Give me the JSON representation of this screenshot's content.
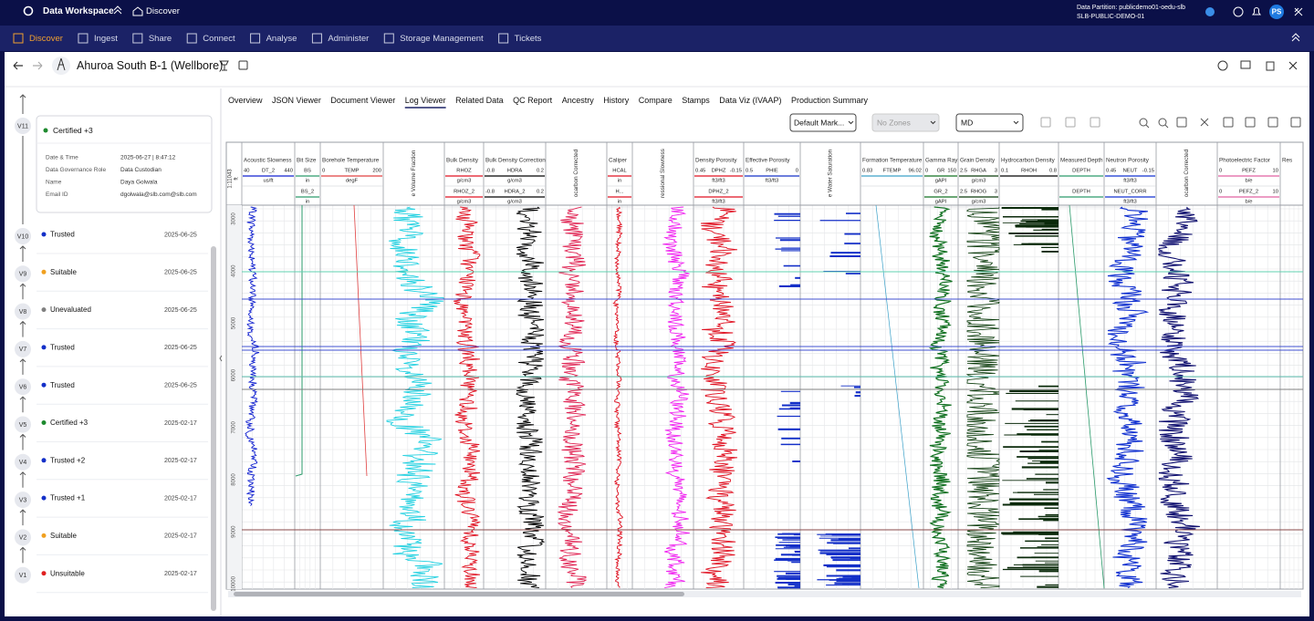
{
  "top_bar": {
    "app": "Data Workspace",
    "home": "Discover",
    "partition": "Data Partition: publicdemo01-oedu-slb",
    "partition_id": "SLB-PUBLIC-DEMO-01",
    "user": "PS"
  },
  "nav": [
    "Discover",
    "Ingest",
    "Share",
    "Connect",
    "Analyse",
    "Administer",
    "Storage Management",
    "Tickets"
  ],
  "page": {
    "title": "Ahuroa South B-1 (Wellbore)"
  },
  "versions": [
    {
      "id": "V11",
      "status": "Certified +3",
      "color": "#1e8a2e",
      "details": [
        {
          "label": "Date & Time",
          "value": "2025-06-27 | 8:47:12"
        },
        {
          "label": "Data Governance Role",
          "value": "Data Custodian"
        },
        {
          "label": "Name",
          "value": "Daya Golwala"
        },
        {
          "label": "Email ID",
          "value": "dgolwala@slb.com@slb.com"
        }
      ]
    },
    {
      "id": "V10",
      "status": "Trusted",
      "date": "2025-06-25",
      "color": "#1430c8"
    },
    {
      "id": "V9",
      "status": "Suitable",
      "date": "2025-06-25",
      "color": "#f0a020"
    },
    {
      "id": "V8",
      "status": "Unevaluated",
      "date": "2025-06-25",
      "color": "#808080"
    },
    {
      "id": "V7",
      "status": "Trusted",
      "date": "2025-06-25",
      "color": "#1430c8"
    },
    {
      "id": "V6",
      "status": "Trusted",
      "date": "2025-06-25",
      "color": "#1430c8"
    },
    {
      "id": "V5",
      "status": "Certified +3",
      "date": "2025-02-17",
      "color": "#1e8a2e"
    },
    {
      "id": "V4",
      "status": "Trusted +2",
      "date": "2025-02-17",
      "color": "#1430c8"
    },
    {
      "id": "V3",
      "status": "Trusted +1",
      "date": "2025-02-17",
      "color": "#1430c8"
    },
    {
      "id": "V2",
      "status": "Suitable",
      "date": "2025-02-17",
      "color": "#f0a020"
    },
    {
      "id": "V1",
      "status": "Unsuitable",
      "date": "2025-02-17",
      "color": "#e02020"
    }
  ],
  "tabs": [
    "Overview",
    "JSON Viewer",
    "Document Viewer",
    "Log Viewer",
    "Related Data",
    "QC Report",
    "Ancestry",
    "History",
    "Compare",
    "Stamps",
    "Data Viz (IVAAP)",
    "Production Summary"
  ],
  "active_tab": "Log Viewer",
  "controls": {
    "marker": "Default Mark...",
    "zones": "No Zones",
    "depth_ref": "MD"
  },
  "log_viewer": {
    "scale": "1:11043",
    "depth_unit": "ft",
    "depth_labels": [
      "3000",
      "4000",
      "5000",
      "6000",
      "7000",
      "8000",
      "9000",
      "10000"
    ],
    "tracks": [
      {
        "title": "Acoustic Slowness",
        "curves": [
          {
            "min": "40",
            "name": "DT_2",
            "max": "440",
            "unit": "us/ft",
            "color": "#1020d0"
          }
        ]
      },
      {
        "title": "Bit Size",
        "curves": [
          {
            "name": "BS",
            "unit": "in",
            "color": "#2a9a6a"
          },
          {
            "name": "BS_2",
            "unit": "in",
            "color": "#2a9a6a"
          }
        ]
      },
      {
        "title": "Borehole Temperature",
        "curves": [
          {
            "min": "0",
            "name": "TEMP",
            "max": "200",
            "unit": "degF",
            "color": "#e04040"
          }
        ]
      },
      {
        "title": "e Volume Fraction",
        "curves": []
      },
      {
        "title": "Bulk Density",
        "curves": [
          {
            "name": "RHOZ",
            "unit": "g/cm3",
            "color": "#e01020"
          },
          {
            "name": "RHOZ_2",
            "unit": "g/cm3",
            "color": "#e01020"
          }
        ]
      },
      {
        "title": "Bulk Density Correction",
        "curves": [
          {
            "min": "-0.8",
            "name": "HDRA",
            "max": "0.2",
            "unit": "g/cm3",
            "color": "#000000"
          },
          {
            "min": "-0.8",
            "name": "HDRA_2",
            "max": "0.2",
            "unit": "g/cm3",
            "color": "#000000"
          }
        ]
      },
      {
        "title": "ocarbon Corrected",
        "curves": []
      },
      {
        "title": "Caliper",
        "curves": [
          {
            "name": "HCAL",
            "unit": "in",
            "color": "#e01020"
          },
          {
            "name": "H...",
            "unit": "in",
            "color": "#e01020"
          }
        ]
      },
      {
        "title": "ressional Slowness",
        "curves": []
      },
      {
        "title": "Density Porosity",
        "curves": [
          {
            "min": "0.45",
            "name": "DPHZ",
            "max": "-0.15",
            "unit": "ft3/ft3",
            "color": "#e01020"
          },
          {
            "name": "DPHZ_2",
            "unit": "ft3/ft3",
            "color": "#e01020"
          }
        ]
      },
      {
        "title": "Effective Porosity",
        "curves": [
          {
            "min": "0.5",
            "name": "PHIE",
            "max": "0",
            "unit": "ft3/ft3",
            "color": "#1430c8"
          }
        ]
      },
      {
        "title": "e Water Saturation",
        "curves": []
      },
      {
        "title": "Formation Temperature",
        "curves": [
          {
            "min": "0.83",
            "name": "FTEMP",
            "max": "96.02",
            "color": "#3aa0c8"
          }
        ]
      },
      {
        "title": "Gamma Ray",
        "curves": [
          {
            "min": "0",
            "name": "GR",
            "max": "150",
            "unit": "gAPI",
            "color": "#107020"
          },
          {
            "name": "GR_2",
            "unit": "gAPI",
            "color": "#107020"
          }
        ]
      },
      {
        "title": "Grain Density",
        "curves": [
          {
            "min": "2.5",
            "name": "RHGA",
            "max": "3",
            "unit": "g/cm3",
            "color": "#0a3a0a"
          },
          {
            "min": "2.5",
            "name": "RHOG",
            "max": "3",
            "unit": "g/cm3",
            "color": "#0a3a0a"
          }
        ]
      },
      {
        "title": "Hydrocarbon Density",
        "curves": [
          {
            "min": "0.1",
            "name": "RHOH",
            "max": "0.8",
            "color": "#000000"
          }
        ]
      },
      {
        "title": "Measured Depth",
        "curves": [
          {
            "name": "DEPTH",
            "color": "#2a9a6a"
          },
          {
            "name": "DEPTH",
            "color": "#2a9a6a"
          }
        ]
      },
      {
        "title": "Neutron Porosity",
        "curves": [
          {
            "min": "0.45",
            "name": "NEUT",
            "max": "-0.15",
            "unit": "ft3/ft3",
            "color": "#1030d0"
          },
          {
            "name": "NEUT_CORR",
            "unit": "ft3/ft3",
            "color": "#1030d0"
          }
        ]
      },
      {
        "title": "ocarbon Corrected",
        "curves": []
      },
      {
        "title": "Photoelectric Factor",
        "curves": [
          {
            "min": "0",
            "name": "PEFZ",
            "max": "10",
            "unit": "b/e",
            "color": "#e060a0"
          },
          {
            "min": "0",
            "name": "PEFZ_2",
            "max": "10",
            "unit": "b/e",
            "color": "#e060a0"
          }
        ]
      },
      {
        "title": "Res",
        "curves": []
      }
    ]
  }
}
